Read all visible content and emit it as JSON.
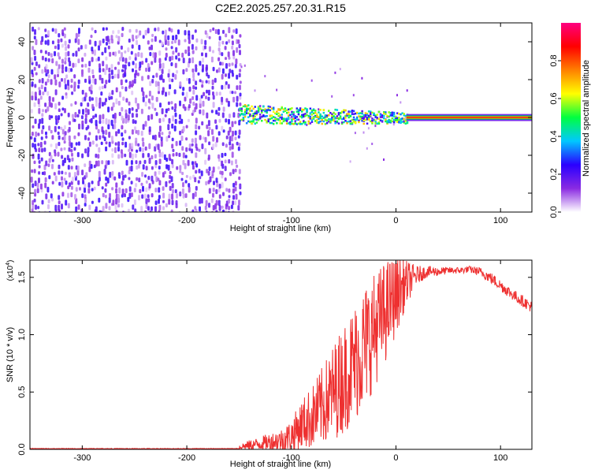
{
  "title": "C2E2.2025.257.20.31.R15",
  "chart_data": [
    {
      "type": "heatmap",
      "xlabel": "Height of straight line (km)",
      "ylabel": "Frequency (Hz)",
      "xlim": [
        -350,
        130
      ],
      "ylim": [
        -50,
        50
      ],
      "xticks": [
        -300,
        -200,
        -100,
        0,
        100
      ],
      "yticks": [
        -40,
        -20,
        0,
        20,
        40
      ],
      "colorbar": {
        "label": "Normalized spectral amplitude",
        "range": [
          0.0,
          1.0
        ],
        "ticks": [
          "0.0",
          "0.2",
          "0.4",
          "0.6",
          "0.8"
        ],
        "tick_values": [
          0.0,
          0.2,
          0.4,
          0.6,
          0.8
        ],
        "colormap": [
          "#ffffff",
          "#8a2be2",
          "#2a00ff",
          "#00c8ff",
          "#00ff40",
          "#ffff00",
          "#ff8000",
          "#ff0000",
          "#ff0080"
        ]
      },
      "regions": [
        {
          "name": "noise",
          "x_range": [
            -350,
            -150
          ],
          "freq_range": [
            -50,
            48
          ],
          "level": 0.1
        },
        {
          "name": "transition",
          "x_range": [
            -150,
            10
          ],
          "center_hz": 2,
          "spread_hz": 4,
          "level": 0.45
        },
        {
          "name": "carrier",
          "x_range": [
            10,
            130
          ],
          "center_hz": 0,
          "level": 0.9
        }
      ]
    },
    {
      "type": "line",
      "xlabel": "Height of straight line (km)",
      "ylabel": "SNR (10 * v/v)",
      "yscale_label": "(x10",
      "yscale_exp": "4",
      "xlim": [
        -350,
        130
      ],
      "ylim": [
        0,
        1.65
      ],
      "xticks": [
        -300,
        -200,
        -100,
        0,
        100
      ],
      "yticks": [
        "0.0",
        "0.5",
        "1.0",
        "1.5"
      ],
      "ytick_values": [
        0.0,
        0.5,
        1.0,
        1.5
      ],
      "series": [
        {
          "name": "SNR",
          "color": "#ee3030",
          "x": [
            -350,
            -160,
            -150,
            -130,
            -110,
            -100,
            -90,
            -80,
            -70,
            -60,
            -50,
            -40,
            -30,
            -20,
            -10,
            0,
            10,
            20,
            30,
            40,
            50,
            60,
            70,
            80,
            90,
            100,
            110,
            120,
            130
          ],
          "y": [
            0.0,
            0.0,
            0.02,
            0.05,
            0.08,
            0.12,
            0.22,
            0.28,
            0.38,
            0.5,
            0.62,
            0.75,
            0.9,
            1.05,
            1.2,
            1.35,
            1.45,
            1.52,
            1.55,
            1.55,
            1.56,
            1.56,
            1.57,
            1.55,
            1.5,
            1.43,
            1.36,
            1.3,
            1.24
          ],
          "spread": [
            0.005,
            0.005,
            0.03,
            0.06,
            0.1,
            0.14,
            0.22,
            0.28,
            0.35,
            0.42,
            0.48,
            0.52,
            0.55,
            0.5,
            0.45,
            0.35,
            0.2,
            0.08,
            0.05,
            0.04,
            0.03,
            0.03,
            0.03,
            0.04,
            0.05,
            0.05,
            0.05,
            0.05,
            0.05
          ]
        }
      ]
    }
  ]
}
